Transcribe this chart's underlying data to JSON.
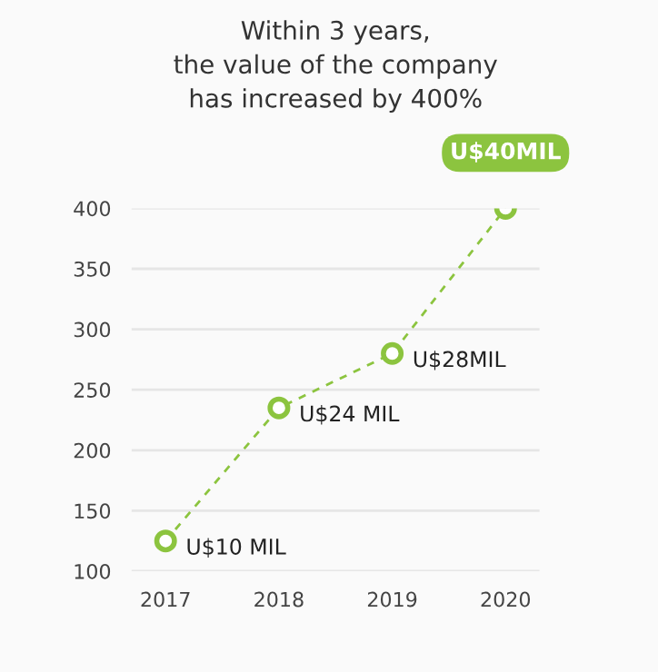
{
  "chart_data": {
    "type": "line",
    "title": "Within 3 years,\nthe value of the company\nhas increased by 400%",
    "categories": [
      "2017",
      "2018",
      "2019",
      "2020"
    ],
    "values": [
      125,
      235,
      280,
      400
    ],
    "value_labels": [
      "U$10 MIL",
      "U$24 MIL",
      "U$28MIL",
      "U$40MIL"
    ],
    "color": "#8cc43f",
    "ylim": [
      100,
      400
    ],
    "yticks": [
      100,
      150,
      200,
      250,
      300,
      350,
      400
    ],
    "grid": "y",
    "marker": "circle",
    "line_style": "dashed"
  }
}
